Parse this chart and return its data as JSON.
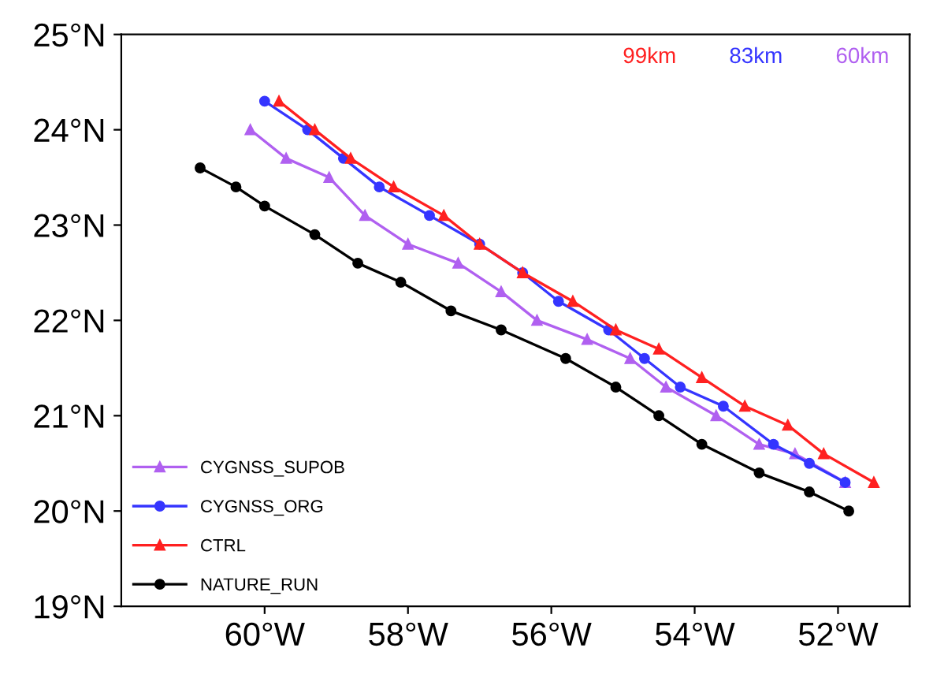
{
  "chart_data": {
    "type": "line",
    "xlim": [
      -62,
      -51
    ],
    "ylim": [
      19,
      25
    ],
    "xticks": [
      {
        "value": -60,
        "label": "60°W"
      },
      {
        "value": -58,
        "label": "58°W"
      },
      {
        "value": -56,
        "label": "56°W"
      },
      {
        "value": -54,
        "label": "54°W"
      },
      {
        "value": -52,
        "label": "52°W"
      }
    ],
    "yticks": [
      {
        "value": 19,
        "label": "19°N"
      },
      {
        "value": 20,
        "label": "20°N"
      },
      {
        "value": 21,
        "label": "21°N"
      },
      {
        "value": 22,
        "label": "22°N"
      },
      {
        "value": 23,
        "label": "23°N"
      },
      {
        "value": 24,
        "label": "24°N"
      },
      {
        "value": 25,
        "label": "25°N"
      }
    ],
    "grid": false,
    "legend": "bottom left",
    "annotations": [
      "99km",
      "83km",
      "60km"
    ],
    "series": [
      {
        "name": "CYGNSS_SUPOB",
        "color": "#b060f0",
        "marker": "triangle",
        "x": [
          -60.2,
          -59.7,
          -59.1,
          -58.6,
          -58.0,
          -57.3,
          -56.7,
          -56.2,
          -55.5,
          -54.9,
          -54.4,
          -53.7,
          -53.1,
          -52.6,
          -51.9
        ],
        "values": [
          24.0,
          23.7,
          23.5,
          23.1,
          22.8,
          22.6,
          22.3,
          22.0,
          21.8,
          21.6,
          21.3,
          21.0,
          20.7,
          20.6,
          20.3
        ]
      },
      {
        "name": "CYGNSS_ORG",
        "color": "#3535ff",
        "marker": "circle",
        "x": [
          -60.0,
          -59.4,
          -58.9,
          -58.4,
          -57.7,
          -57.0,
          -56.4,
          -55.9,
          -55.2,
          -54.7,
          -54.2,
          -53.6,
          -52.9,
          -52.4,
          -51.9
        ],
        "values": [
          24.3,
          24.0,
          23.7,
          23.4,
          23.1,
          22.8,
          22.5,
          22.2,
          21.9,
          21.6,
          21.3,
          21.1,
          20.7,
          20.5,
          20.3
        ]
      },
      {
        "name": "CTRL",
        "color": "#ff2020",
        "marker": "triangle",
        "x": [
          -59.8,
          -59.3,
          -58.8,
          -58.2,
          -57.5,
          -57.0,
          -56.4,
          -55.7,
          -55.1,
          -54.5,
          -53.9,
          -53.3,
          -52.7,
          -52.2,
          -51.5
        ],
        "values": [
          24.3,
          24.0,
          23.7,
          23.4,
          23.1,
          22.8,
          22.5,
          22.2,
          21.9,
          21.7,
          21.4,
          21.1,
          20.9,
          20.6,
          20.3
        ]
      },
      {
        "name": "NATURE_RUN",
        "color": "#000000",
        "marker": "circle",
        "x": [
          -60.9,
          -60.4,
          -60.0,
          -59.3,
          -58.7,
          -58.1,
          -57.4,
          -56.7,
          -55.8,
          -55.1,
          -54.5,
          -53.9,
          -53.1,
          -52.4,
          -51.85
        ],
        "values": [
          23.6,
          23.4,
          23.2,
          22.9,
          22.6,
          22.4,
          22.1,
          21.9,
          21.6,
          21.3,
          21.0,
          20.7,
          20.4,
          20.2,
          20.0
        ]
      }
    ]
  }
}
